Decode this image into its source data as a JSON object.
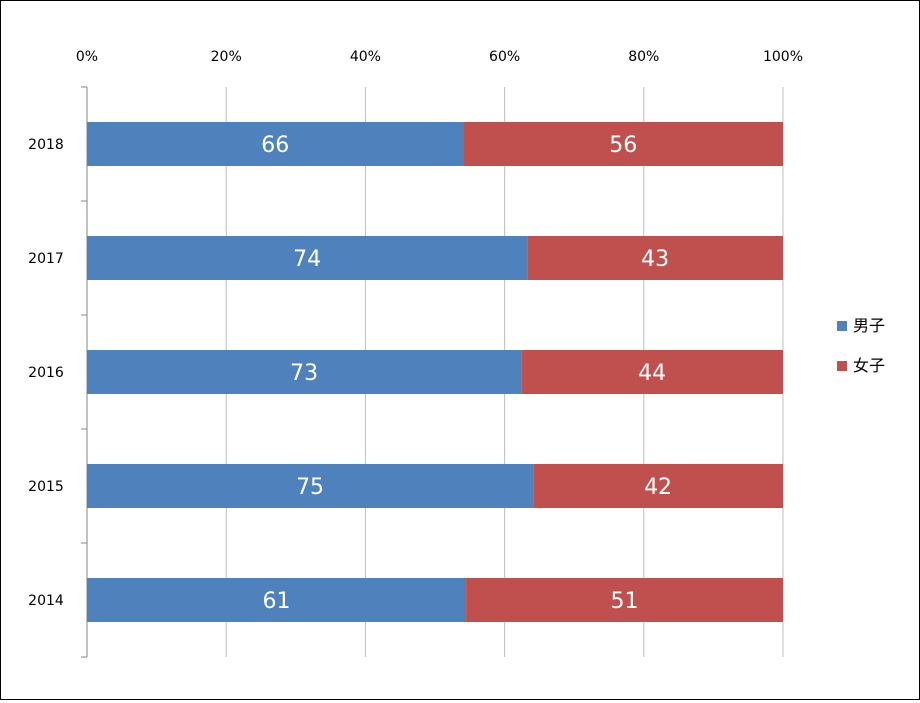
{
  "chart_data": {
    "type": "bar",
    "orientation": "horizontal",
    "stacked": "percent",
    "categories": [
      "2018",
      "2017",
      "2016",
      "2015",
      "2014"
    ],
    "series": [
      {
        "name": "男子",
        "color": "#4F81BD",
        "values": [
          66,
          74,
          73,
          75,
          61
        ]
      },
      {
        "name": "女子",
        "color": "#C0504D",
        "values": [
          56,
          43,
          44,
          42,
          51
        ]
      }
    ],
    "xlim": [
      0,
      100
    ],
    "x_ticks": [
      "0%",
      "20%",
      "40%",
      "60%",
      "80%",
      "100%"
    ],
    "x_axis_position": "top",
    "grid": true,
    "legend_position": "right"
  }
}
